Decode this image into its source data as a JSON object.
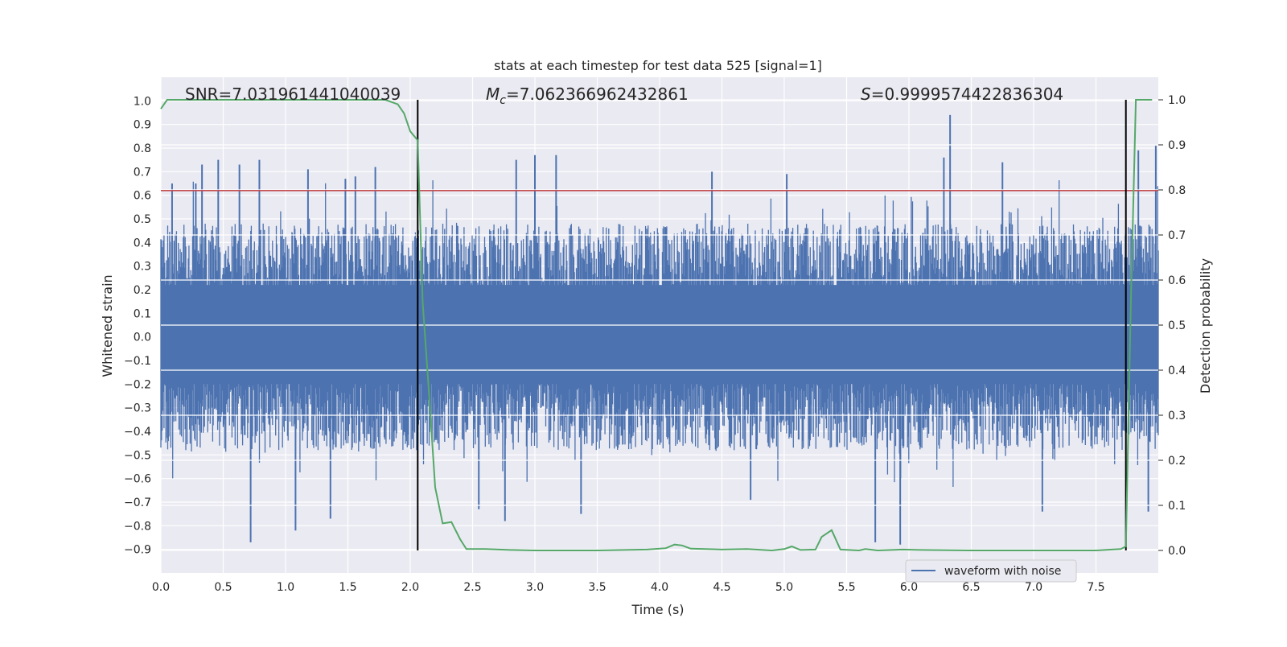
{
  "chart_data": {
    "type": "line",
    "title": "stats at each timestep for test data 525 [signal=1]",
    "xlabel": "Time (s)",
    "ylabel_left": "Whitened strain",
    "ylabel_right": "Detection probability",
    "xlim": [
      0.0,
      8.0
    ],
    "ylim_left": [
      -1.0,
      1.1
    ],
    "ylim_right": [
      -0.05,
      1.05
    ],
    "xticks": [
      "0.0",
      "0.5",
      "1.0",
      "1.5",
      "2.0",
      "2.5",
      "3.0",
      "3.5",
      "4.0",
      "4.5",
      "5.0",
      "5.5",
      "6.0",
      "6.5",
      "7.0",
      "7.5"
    ],
    "yticks_left": [
      "1.0",
      "0.9",
      "0.8",
      "0.7",
      "0.6",
      "0.5",
      "0.4",
      "0.3",
      "0.2",
      "0.1",
      "0.0",
      "−0.1",
      "−0.2",
      "−0.3",
      "−0.4",
      "−0.5",
      "−0.6",
      "−0.7",
      "−0.8",
      "−0.9"
    ],
    "yticks_right": [
      "1.0",
      "0.9",
      "0.8",
      "0.7",
      "0.6",
      "0.5",
      "0.4",
      "0.3",
      "0.2",
      "0.1",
      "0.0"
    ],
    "annotations": {
      "snr": "SNR=7.031961441040039",
      "mc_prefix": "M",
      "mc_sub": "c",
      "mc_value": "=7.062366962432861",
      "s_prefix": "S",
      "s_value": "=0.9999574422836304"
    },
    "threshold_line": {
      "y": 0.62,
      "color": "#c44e52"
    },
    "vertical_markers": [
      2.06,
      7.74
    ],
    "series": [
      {
        "name": "waveform with noise",
        "color": "#4c72b0",
        "axis": "left",
        "description": "dense noise trace, typical band approx -0.45 to 0.45 with peaks up to 0.94 and dips to -0.88",
        "notable_peaks": [
          [
            0.09,
            0.65
          ],
          [
            0.28,
            0.65
          ],
          [
            0.33,
            0.73
          ],
          [
            0.46,
            0.75
          ],
          [
            0.63,
            0.73
          ],
          [
            0.79,
            0.75
          ],
          [
            1.18,
            0.71
          ],
          [
            1.48,
            0.67
          ],
          [
            1.56,
            0.68
          ],
          [
            1.72,
            0.72
          ],
          [
            2.85,
            0.75
          ],
          [
            3.0,
            0.77
          ],
          [
            3.17,
            0.77
          ],
          [
            4.42,
            0.7
          ],
          [
            5.02,
            0.69
          ],
          [
            6.33,
            0.94
          ],
          [
            6.28,
            0.76
          ],
          [
            6.75,
            0.74
          ],
          [
            7.84,
            0.79
          ],
          [
            7.98,
            0.81
          ]
        ],
        "notable_dips": [
          [
            0.72,
            -0.87
          ],
          [
            1.08,
            -0.82
          ],
          [
            1.36,
            -0.77
          ],
          [
            2.55,
            -0.73
          ],
          [
            2.76,
            -0.78
          ],
          [
            3.37,
            -0.75
          ],
          [
            4.73,
            -0.69
          ],
          [
            5.73,
            -0.87
          ],
          [
            5.93,
            -0.88
          ],
          [
            7.07,
            -0.74
          ],
          [
            7.92,
            -0.74
          ]
        ]
      },
      {
        "name": "detection probability",
        "color": "#55a868",
        "axis": "right",
        "points": [
          [
            0.0,
            0.98
          ],
          [
            0.05,
            1.0
          ],
          [
            0.3,
            1.0
          ],
          [
            0.6,
            1.0
          ],
          [
            0.9,
            1.0
          ],
          [
            1.2,
            1.0
          ],
          [
            1.5,
            1.0
          ],
          [
            1.8,
            1.0
          ],
          [
            1.9,
            0.99
          ],
          [
            1.95,
            0.97
          ],
          [
            2.0,
            0.93
          ],
          [
            2.06,
            0.91
          ],
          [
            2.1,
            0.55
          ],
          [
            2.15,
            0.35
          ],
          [
            2.2,
            0.14
          ],
          [
            2.26,
            0.06
          ],
          [
            2.33,
            0.063
          ],
          [
            2.4,
            0.025
          ],
          [
            2.45,
            0.003
          ],
          [
            2.6,
            0.003
          ],
          [
            2.8,
            0.001
          ],
          [
            3.0,
            0.0
          ],
          [
            3.5,
            0.0
          ],
          [
            3.9,
            0.002
          ],
          [
            4.05,
            0.005
          ],
          [
            4.12,
            0.013
          ],
          [
            4.18,
            0.011
          ],
          [
            4.25,
            0.004
          ],
          [
            4.5,
            0.002
          ],
          [
            4.7,
            0.003
          ],
          [
            4.9,
            0.0
          ],
          [
            5.0,
            0.003
          ],
          [
            5.06,
            0.009
          ],
          [
            5.13,
            0.001
          ],
          [
            5.25,
            0.002
          ],
          [
            5.3,
            0.03
          ],
          [
            5.38,
            0.045
          ],
          [
            5.45,
            0.002
          ],
          [
            5.6,
            0.0
          ],
          [
            5.65,
            0.003
          ],
          [
            5.75,
            0.0
          ],
          [
            5.95,
            0.002
          ],
          [
            6.1,
            0.001
          ],
          [
            6.5,
            0.0
          ],
          [
            7.0,
            0.0
          ],
          [
            7.5,
            0.0
          ],
          [
            7.7,
            0.003
          ],
          [
            7.74,
            0.009
          ],
          [
            7.78,
            0.55
          ],
          [
            7.82,
            1.0
          ],
          [
            7.86,
            1.0
          ],
          [
            7.95,
            1.0
          ]
        ]
      }
    ],
    "legend": {
      "label": "waveform with noise",
      "placement": "lower-right"
    }
  }
}
